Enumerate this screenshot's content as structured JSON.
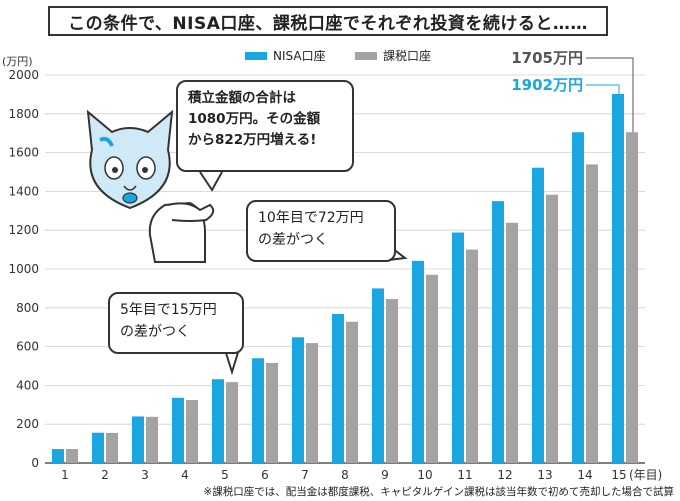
{
  "title": "この条件で、NISA口座、課税口座でそれぞれ投資を続けると……",
  "footnote": "※課税口座では、配当金は都度課税、キャピタルゲイン課税は該当年数で初めて売却した場合で試算",
  "bubbles": {
    "summary": [
      "積立金額の合計は",
      "1080万円。その金額",
      "から822万円増える!"
    ],
    "year10": [
      "10年目で72万円",
      "の差がつく"
    ],
    "year5": [
      "5年目で15万円",
      "の差がつく"
    ]
  },
  "final_labels": {
    "taxable": "1705万円",
    "nisa": "1902万円"
  },
  "colors": {
    "nisa": "#1aa7e1",
    "taxable": "#a3a3a3",
    "axis": "#555555",
    "grid": "#cfcfcf"
  },
  "chart_data": {
    "type": "bar",
    "ylabel": "(万円)",
    "xlabel_unit": "(年目)",
    "ylim": [
      0,
      2000
    ],
    "yticks": [
      0,
      200,
      400,
      600,
      800,
      1000,
      1200,
      1400,
      1600,
      1800,
      2000
    ],
    "categories": [
      "1",
      "2",
      "3",
      "4",
      "5",
      "6",
      "7",
      "8",
      "9",
      "10",
      "11",
      "12",
      "13",
      "14",
      "15"
    ],
    "legend_position": "top",
    "series": [
      {
        "name": "NISA口座",
        "values": [
          72,
          156,
          240,
          336,
          432,
          540,
          648,
          768,
          900,
          1042,
          1188,
          1350,
          1522,
          1705,
          1902
        ]
      },
      {
        "name": "課税口座",
        "values": [
          72,
          155,
          238,
          325,
          417,
          516,
          618,
          728,
          845,
          970,
          1100,
          1238,
          1383,
          1539,
          1705
        ]
      }
    ]
  }
}
